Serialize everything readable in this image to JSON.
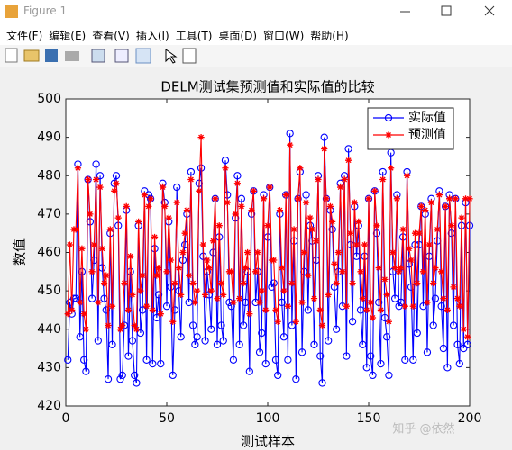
{
  "window": {
    "title": "Figure 1",
    "menu": [
      "文件(F)",
      "编辑(E)",
      "查看(V)",
      "插入(I)",
      "工具(T)",
      "桌面(D)",
      "窗口(W)",
      "帮助(H)"
    ]
  },
  "watermark": "知乎 @依然",
  "chart_data": {
    "type": "line",
    "title": "DELM测试集预测值和实际值的比较",
    "x_label": "测试样本",
    "y_label": "数值",
    "xlim": [
      0,
      200
    ],
    "ylim": [
      420,
      500
    ],
    "xticks": [
      0,
      50,
      100,
      150,
      200
    ],
    "yticks": [
      420,
      430,
      440,
      450,
      460,
      470,
      480,
      490,
      500
    ],
    "legend": "top-right",
    "x": [
      1,
      2,
      3,
      4,
      5,
      6,
      7,
      8,
      9,
      10,
      11,
      12,
      13,
      14,
      15,
      16,
      17,
      18,
      19,
      20,
      21,
      22,
      23,
      24,
      25,
      26,
      27,
      28,
      29,
      30,
      31,
      32,
      33,
      34,
      35,
      36,
      37,
      38,
      39,
      40,
      41,
      42,
      43,
      44,
      45,
      46,
      47,
      48,
      49,
      50,
      51,
      52,
      53,
      54,
      55,
      56,
      57,
      58,
      59,
      60,
      61,
      62,
      63,
      64,
      65,
      66,
      67,
      68,
      69,
      70,
      71,
      72,
      73,
      74,
      75,
      76,
      77,
      78,
      79,
      80,
      81,
      82,
      83,
      84,
      85,
      86,
      87,
      88,
      89,
      90,
      91,
      92,
      93,
      94,
      95,
      96,
      97,
      98,
      99,
      100,
      101,
      102,
      103,
      104,
      105,
      106,
      107,
      108,
      109,
      110,
      111,
      112,
      113,
      114,
      115,
      116,
      117,
      118,
      119,
      120,
      121,
      122,
      123,
      124,
      125,
      126,
      127,
      128,
      129,
      130,
      131,
      132,
      133,
      134,
      135,
      136,
      137,
      138,
      139,
      140,
      141,
      142,
      143,
      144,
      145,
      146,
      147,
      148,
      149,
      150,
      151,
      152,
      153,
      154,
      155,
      156,
      157,
      158,
      159,
      160,
      161,
      162,
      163,
      164,
      165,
      166,
      167,
      168,
      169,
      170,
      171,
      172,
      173,
      174,
      175,
      176,
      177,
      178,
      179,
      180,
      181,
      182,
      183,
      184,
      185,
      186,
      187,
      188,
      189,
      190,
      191,
      192,
      193,
      194,
      195,
      196,
      197,
      198,
      199,
      200
    ],
    "series": [
      {
        "name": "实际值",
        "color": "#0000ff",
        "marker": "circle",
        "values": [
          432,
          447,
          444,
          448,
          448,
          483,
          438,
          455,
          432,
          429,
          479,
          468,
          448,
          458,
          483,
          437,
          480,
          456,
          448,
          445,
          427,
          465,
          436,
          478,
          480,
          467,
          427,
          428,
          441,
          471,
          433,
          455,
          437,
          428,
          426,
          467,
          439,
          445,
          476,
          432,
          475,
          474,
          431,
          461,
          443,
          449,
          431,
          478,
          473,
          446,
          468,
          451,
          428,
          445,
          477,
          450,
          438,
          458,
          462,
          470,
          447,
          481,
          441,
          436,
          438,
          478,
          482,
          459,
          437,
          455,
          449,
          440,
          460,
          474,
          436,
          464,
          441,
          437,
          484,
          475,
          447,
          446,
          432,
          469,
          480,
          436,
          474,
          441,
          447,
          455,
          429,
          470,
          476,
          447,
          455,
          434,
          439,
          475,
          431,
          464,
          477,
          451,
          452,
          432,
          428,
          470,
          447,
          438,
          475,
          432,
          491,
          441,
          463,
          427,
          474,
          481,
          434,
          455,
          475,
          445,
          467,
          463,
          436,
          458,
          480,
          433,
          426,
          490,
          474,
          437,
          471,
          466,
          451,
          440,
          455,
          478,
          446,
          480,
          433,
          487,
          462,
          442,
          472,
          459,
          467,
          445,
          436,
          459,
          430,
          474,
          433,
          428,
          476,
          465,
          447,
          431,
          481,
          443,
          438,
          428,
          486,
          455,
          448,
          475,
          446,
          447,
          464,
          432,
          481,
          457,
          451,
          432,
          462,
          439,
          462,
          472,
          446,
          470,
          434,
          459,
          474,
          441,
          448,
          463,
          476,
          446,
          435,
          472,
          430,
          475,
          465,
          441,
          474,
          436,
          431,
          467,
          435,
          473,
          436,
          467
        ]
      },
      {
        "name": "预测值",
        "color": "#ff0000",
        "marker": "star",
        "values": [
          444,
          462,
          445,
          466,
          466,
          482,
          447,
          461,
          444,
          440,
          479,
          470,
          455,
          462,
          479,
          447,
          477,
          461,
          452,
          454,
          441,
          466,
          446,
          476,
          478,
          469,
          440,
          441,
          452,
          472,
          445,
          459,
          449,
          441,
          440,
          468,
          450,
          454,
          475,
          446,
          472,
          474,
          445,
          464,
          454,
          456,
          444,
          477,
          472,
          455,
          469,
          458,
          442,
          452,
          473,
          456,
          449,
          460,
          465,
          471,
          454,
          479,
          452,
          447,
          450,
          476,
          490,
          462,
          449,
          458,
          456,
          450,
          463,
          474,
          448,
          467,
          452,
          449,
          482,
          473,
          455,
          455,
          447,
          470,
          478,
          448,
          472,
          452,
          456,
          460,
          444,
          471,
          476,
          455,
          460,
          447,
          450,
          474,
          445,
          467,
          477,
          458,
          458,
          445,
          442,
          471,
          456,
          450,
          475,
          446,
          488,
          452,
          466,
          442,
          474,
          482,
          447,
          460,
          473,
          454,
          469,
          466,
          448,
          463,
          479,
          445,
          441,
          487,
          474,
          449,
          472,
          468,
          457,
          452,
          460,
          477,
          455,
          479,
          446,
          484,
          465,
          452,
          473,
          462,
          468,
          455,
          448,
          462,
          445,
          474,
          447,
          443,
          476,
          467,
          456,
          445,
          479,
          453,
          449,
          442,
          482,
          460,
          456,
          474,
          455,
          456,
          466,
          446,
          480,
          461,
          458,
          446,
          465,
          452,
          465,
          472,
          455,
          471,
          447,
          462,
          473,
          452,
          456,
          466,
          475,
          455,
          448,
          472,
          445,
          474,
          467,
          451,
          474,
          448,
          446,
          469,
          440,
          474,
          438,
          474
        ]
      }
    ]
  }
}
